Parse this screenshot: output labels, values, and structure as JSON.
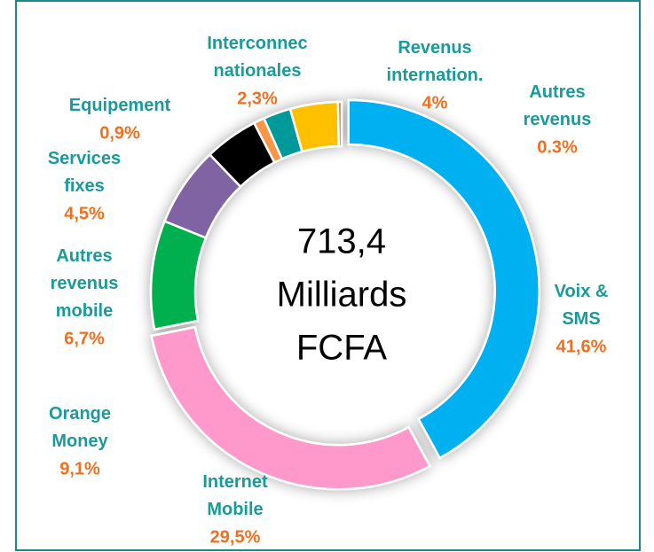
{
  "chart_data": {
    "type": "donut",
    "categories": [
      "Voix &\nSMS",
      "Internet\nMobile",
      "Orange\nMoney",
      "Autres\nrevenus\nmobile",
      "Services\nfixes",
      "Equipement",
      "Interconnec\nnationales",
      "Revenus\ninternation.",
      "Autres\nrevenus"
    ],
    "values": [
      41.6,
      29.5,
      9.1,
      6.7,
      4.5,
      0.9,
      2.3,
      4,
      0.3
    ],
    "value_labels": [
      "41,6%",
      "29,5%",
      "9,1%",
      "6,7%",
      "4,5%",
      "0,9%",
      "2,3%",
      "4%",
      "0.3%"
    ],
    "colors": [
      "#00b0f0",
      "#ff99cc",
      "#00b050",
      "#8064a2",
      "#000000",
      "#f79646",
      "#009999",
      "#ffc000",
      "#e46c0a"
    ],
    "annotations": [
      "713,4",
      "Milliards",
      "FCFA"
    ]
  }
}
